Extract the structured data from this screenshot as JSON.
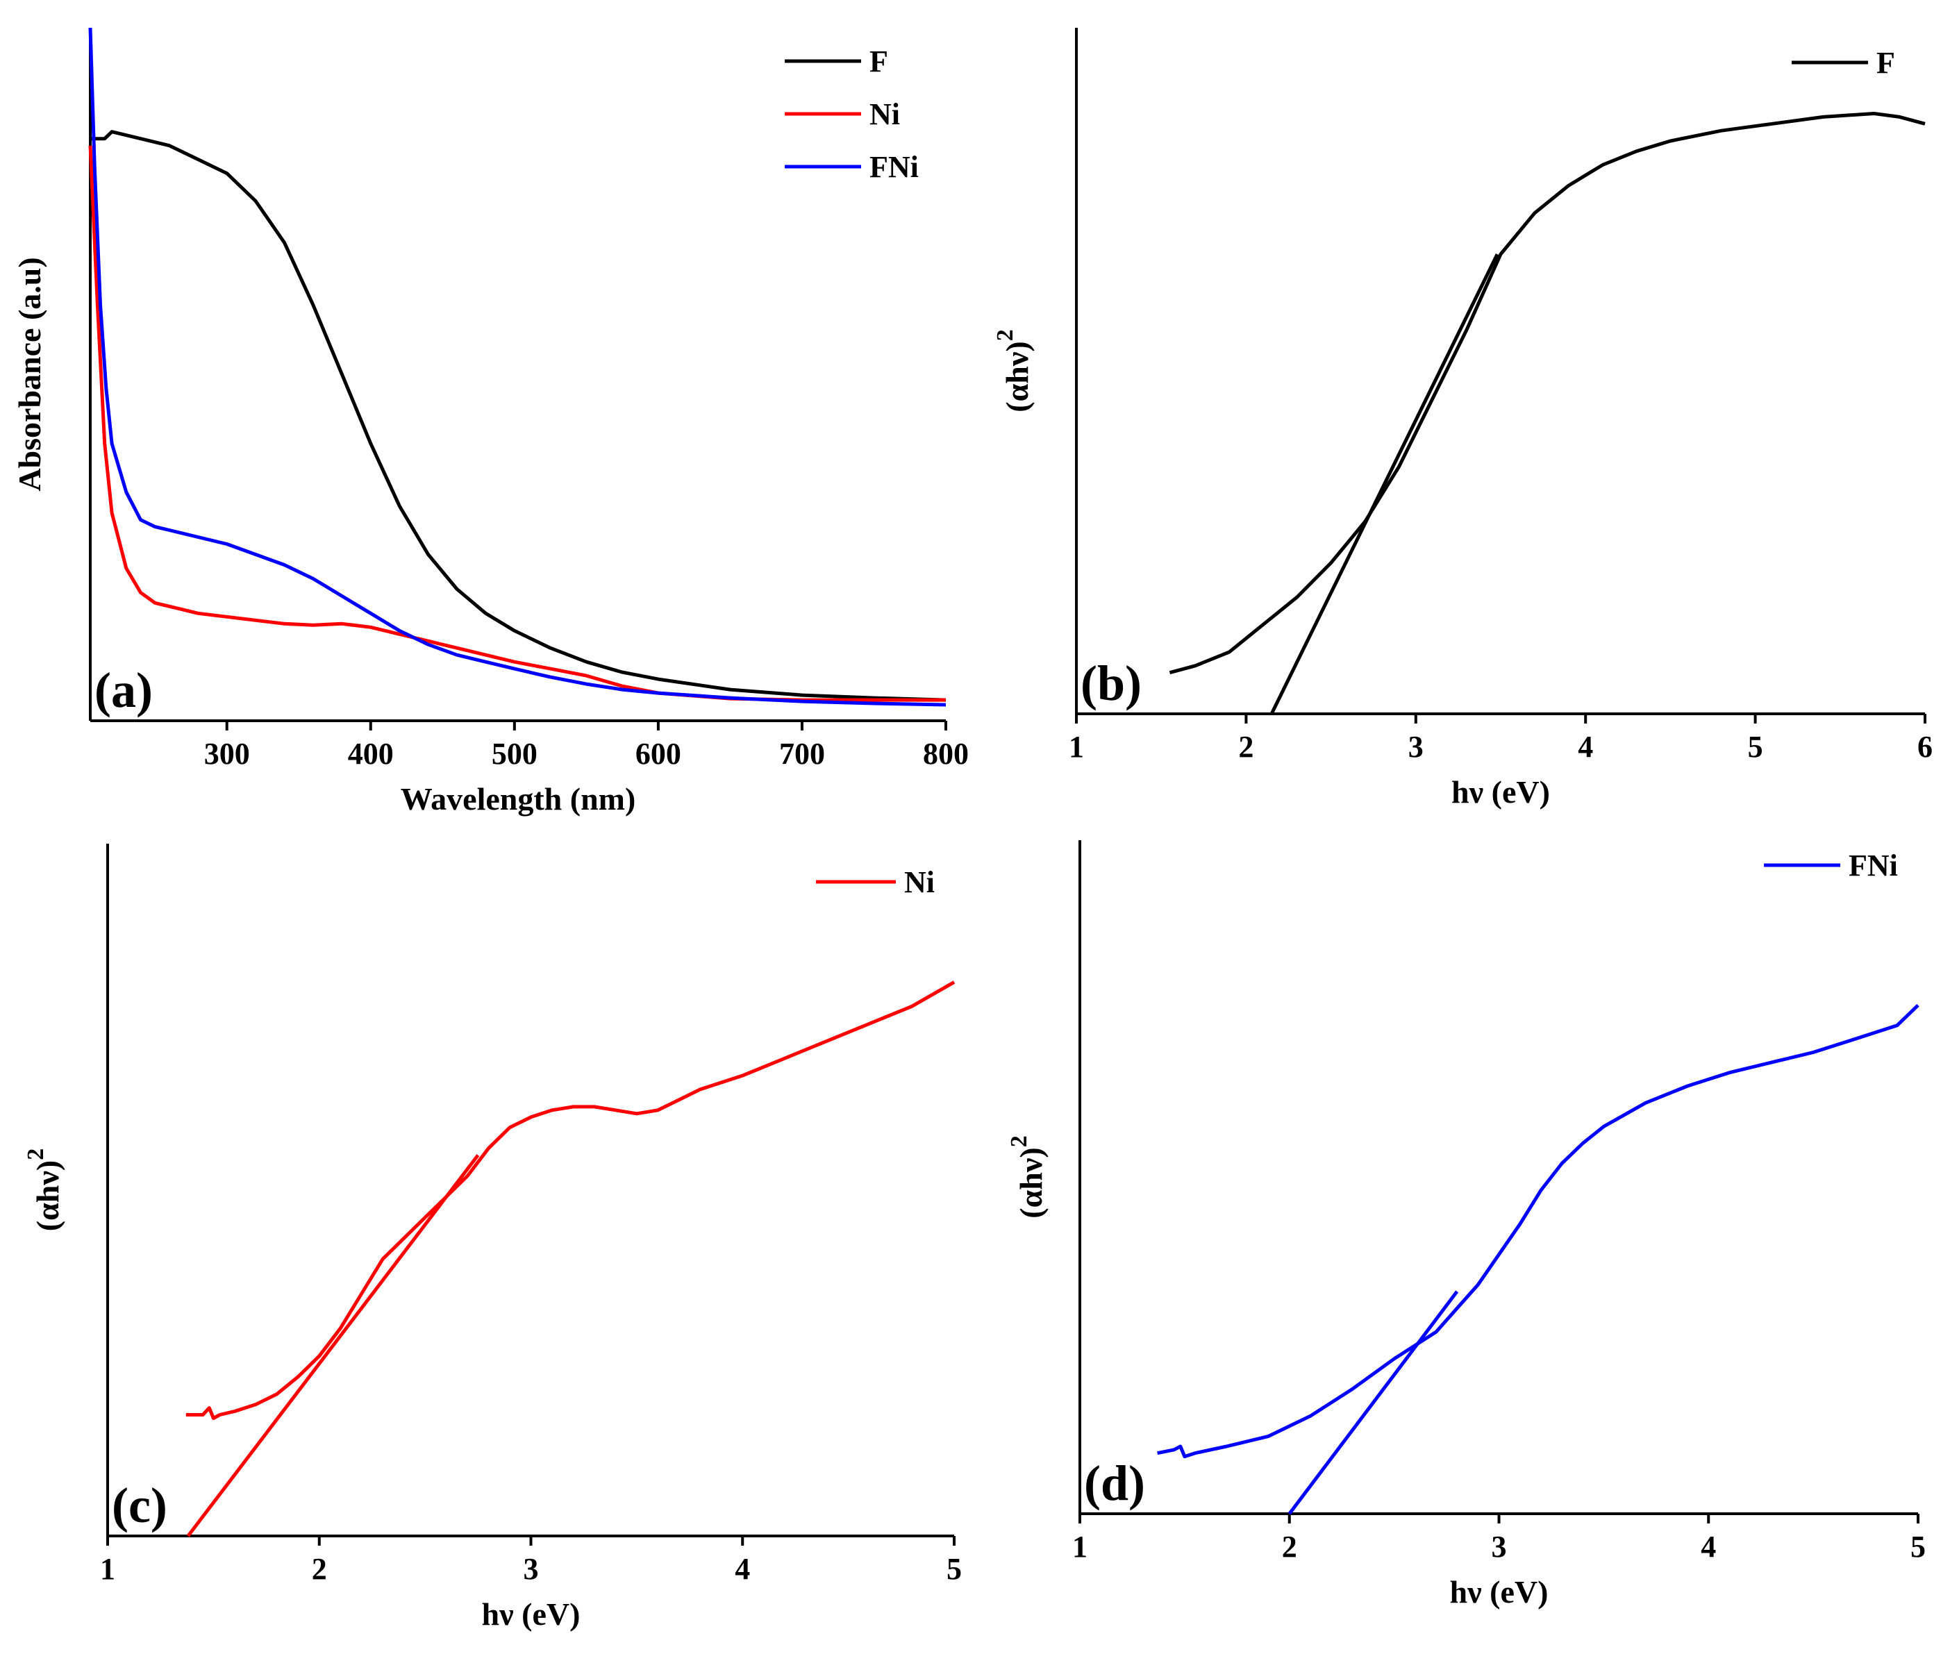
{
  "chart_data": [
    {
      "id": "a",
      "type": "line",
      "panel_label": "(a)",
      "xlabel": "Wavelength (nm)",
      "ylabel": "Absorbance (a.u)",
      "xlim": [
        205,
        800
      ],
      "ylim": [
        0,
        1
      ],
      "xticks": [
        300,
        400,
        500,
        600,
        700,
        800
      ],
      "yticks_shown": false,
      "legend_position": "top-right",
      "series": [
        {
          "name": "F",
          "color": "#000000",
          "x": [
            205,
            210,
            215,
            220,
            240,
            260,
            280,
            300,
            320,
            340,
            360,
            380,
            400,
            420,
            440,
            460,
            480,
            500,
            525,
            550,
            575,
            600,
            650,
            700,
            750,
            800
          ],
          "y": [
            0.84,
            0.84,
            0.84,
            0.85,
            0.84,
            0.83,
            0.81,
            0.79,
            0.75,
            0.69,
            0.6,
            0.5,
            0.4,
            0.31,
            0.24,
            0.19,
            0.155,
            0.13,
            0.105,
            0.085,
            0.07,
            0.06,
            0.045,
            0.037,
            0.033,
            0.03
          ]
        },
        {
          "name": "Ni",
          "color": "#ff0000",
          "x": [
            205,
            210,
            215,
            220,
            230,
            240,
            250,
            260,
            280,
            300,
            320,
            340,
            360,
            380,
            400,
            420,
            440,
            460,
            480,
            500,
            525,
            550,
            575,
            600,
            650,
            700,
            750,
            800
          ],
          "y": [
            0.83,
            0.6,
            0.4,
            0.3,
            0.22,
            0.185,
            0.17,
            0.165,
            0.155,
            0.15,
            0.145,
            0.14,
            0.138,
            0.14,
            0.135,
            0.125,
            0.115,
            0.105,
            0.095,
            0.085,
            0.075,
            0.065,
            0.05,
            0.04,
            0.032,
            0.03,
            0.03,
            0.03
          ]
        },
        {
          "name": "FNi",
          "color": "#0000ff",
          "x": [
            205,
            208,
            212,
            216,
            220,
            230,
            240,
            250,
            260,
            280,
            300,
            320,
            340,
            360,
            380,
            400,
            420,
            440,
            460,
            480,
            500,
            525,
            550,
            575,
            600,
            650,
            700,
            750,
            800
          ],
          "y": [
            1.0,
            0.8,
            0.6,
            0.48,
            0.4,
            0.33,
            0.29,
            0.28,
            0.275,
            0.265,
            0.255,
            0.24,
            0.225,
            0.205,
            0.18,
            0.155,
            0.13,
            0.11,
            0.095,
            0.085,
            0.075,
            0.063,
            0.053,
            0.045,
            0.04,
            0.033,
            0.028,
            0.025,
            0.023
          ]
        }
      ]
    },
    {
      "id": "b",
      "type": "line",
      "panel_label": "(b)",
      "xlabel": "hν (eV)",
      "ylabel": "(αhν)",
      "ylabel_superscript": "2",
      "xlim": [
        1,
        6
      ],
      "ylim": [
        0,
        1
      ],
      "xticks": [
        1,
        2,
        3,
        4,
        5,
        6
      ],
      "yticks_shown": false,
      "legend_position": "top-right",
      "series": [
        {
          "name": "F",
          "color": "#000000",
          "x": [
            1.55,
            1.7,
            1.9,
            2.1,
            2.3,
            2.5,
            2.7,
            2.9,
            3.1,
            3.3,
            3.5,
            3.7,
            3.9,
            4.1,
            4.3,
            4.5,
            4.8,
            5.1,
            5.4,
            5.7,
            5.85,
            6.0
          ],
          "y": [
            0.06,
            0.07,
            0.09,
            0.13,
            0.17,
            0.22,
            0.28,
            0.36,
            0.46,
            0.56,
            0.67,
            0.73,
            0.77,
            0.8,
            0.82,
            0.835,
            0.85,
            0.86,
            0.87,
            0.875,
            0.87,
            0.86
          ]
        }
      ],
      "fit_line": {
        "x": [
          2.15,
          3.48
        ],
        "y": [
          0.0,
          0.67
        ]
      }
    },
    {
      "id": "c",
      "type": "line",
      "panel_label": "(c)",
      "xlabel": "hν (eV)",
      "ylabel": "(αhν)",
      "ylabel_superscript": "2",
      "xlim": [
        1,
        5
      ],
      "ylim": [
        0,
        1
      ],
      "xticks": [
        1,
        2,
        3,
        4,
        5
      ],
      "yticks_shown": false,
      "legend_position": "top-right",
      "series": [
        {
          "name": "Ni",
          "color": "#ff0000",
          "x": [
            1.37,
            1.45,
            1.48,
            1.5,
            1.53,
            1.6,
            1.7,
            1.8,
            1.9,
            2.0,
            2.1,
            2.2,
            2.3,
            2.4,
            2.5,
            2.6,
            2.7,
            2.8,
            2.9,
            3.0,
            3.1,
            3.2,
            3.3,
            3.4,
            3.5,
            3.6,
            3.7,
            3.8,
            4.0,
            4.2,
            4.4,
            4.6,
            4.8,
            5.0
          ],
          "y": [
            0.175,
            0.175,
            0.185,
            0.17,
            0.175,
            0.18,
            0.19,
            0.205,
            0.23,
            0.26,
            0.3,
            0.35,
            0.4,
            0.43,
            0.46,
            0.49,
            0.52,
            0.56,
            0.59,
            0.605,
            0.615,
            0.62,
            0.62,
            0.615,
            0.61,
            0.615,
            0.63,
            0.645,
            0.665,
            0.69,
            0.715,
            0.74,
            0.765,
            0.8
          ]
        }
      ],
      "fit_line": {
        "x": [
          1.38,
          2.75
        ],
        "y": [
          0.0,
          0.55
        ]
      }
    },
    {
      "id": "d",
      "type": "line",
      "panel_label": "(d)",
      "xlabel": "hν (eV)",
      "ylabel": "(αhν)",
      "ylabel_superscript": "2",
      "xlim": [
        1,
        5
      ],
      "ylim": [
        0,
        1
      ],
      "xticks": [
        1,
        2,
        3,
        4,
        5
      ],
      "yticks_shown": false,
      "legend_position": "top-right",
      "series": [
        {
          "name": "FNi",
          "color": "#0000ff",
          "x": [
            1.37,
            1.45,
            1.48,
            1.5,
            1.55,
            1.7,
            1.9,
            2.1,
            2.3,
            2.5,
            2.7,
            2.9,
            3.1,
            3.2,
            3.3,
            3.4,
            3.5,
            3.7,
            3.9,
            4.1,
            4.3,
            4.5,
            4.7,
            4.9,
            5.0
          ],
          "y": [
            0.09,
            0.095,
            0.1,
            0.085,
            0.09,
            0.1,
            0.115,
            0.145,
            0.185,
            0.23,
            0.27,
            0.34,
            0.43,
            0.48,
            0.52,
            0.55,
            0.575,
            0.61,
            0.635,
            0.655,
            0.67,
            0.685,
            0.705,
            0.725,
            0.755
          ]
        }
      ],
      "fit_line": {
        "x": [
          2.0,
          2.8
        ],
        "y": [
          0.0,
          0.33
        ]
      }
    }
  ]
}
